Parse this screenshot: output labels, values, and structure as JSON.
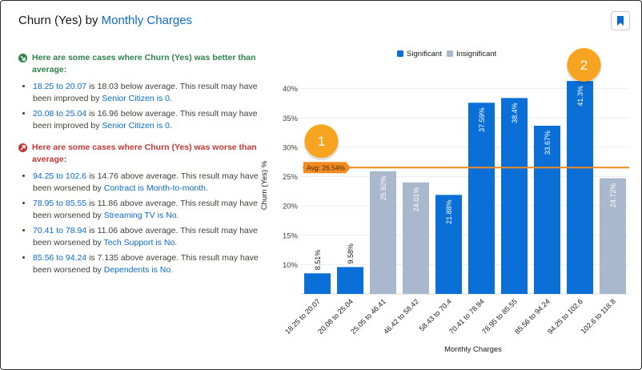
{
  "title": {
    "prefix": "Churn (Yes)",
    "by": "by",
    "field": "Monthly Charges"
  },
  "icons": {
    "bookmark": "bookmark-icon",
    "better": "arrow-down-right-icon",
    "worse": "arrow-up-right-icon"
  },
  "colors": {
    "significant": "#0a6fd6",
    "insignificant": "#a9b8cc",
    "average": "#f28a1d",
    "better": "#2e844a",
    "worse": "#c23934",
    "link": "#0b6bcb"
  },
  "insights": {
    "better_header": "Here are some cases where Churn (Yes) was better than average:",
    "better": [
      {
        "range": "18.25 to 20.07",
        "text": " is 18.03 below average. This result may have been improved by ",
        "factor": "Senior Citizen is 0."
      },
      {
        "range": "20.08 to 25.04",
        "text": " is 16.96 below average. This result may have been improved by ",
        "factor": "Senior Citizen is 0."
      }
    ],
    "worse_header": "Here are some cases where Churn (Yes) was worse than average:",
    "worse": [
      {
        "range": "94.25 to 102.6",
        "text": " is 14.76 above average. This result may have been worsened by ",
        "factor": "Contract is Month-to-month."
      },
      {
        "range": "78.95 to 85.55",
        "text": " is 11.86 above average. This result may have been worsened by ",
        "factor": "Streaming TV is No."
      },
      {
        "range": "70.41 to 78.94",
        "text": " is 11.06 above average. This result may have been worsened by ",
        "factor": "Tech Support is No."
      },
      {
        "range": "85.56 to 94.24",
        "text": " is 7.135 above average. This result may have been worsened by ",
        "factor": "Dependents is No."
      }
    ]
  },
  "chart_data": {
    "type": "bar",
    "xlabel": "Monthly Charges",
    "ylabel": "Churn (Yes) %",
    "ylim": [
      5,
      42
    ],
    "yticks": [
      10,
      15,
      20,
      25,
      30,
      35,
      40
    ],
    "ytick_labels": [
      "10%",
      "15%",
      "20%",
      "25%",
      "30%",
      "35%",
      "40%"
    ],
    "grid": true,
    "legend": {
      "position": "top",
      "entries": [
        "Significant",
        "Insignificant"
      ]
    },
    "categories": [
      "18.25 to 20.07",
      "20.08 to 25.04",
      "25.05 to 46.41",
      "46.42 to 58.42",
      "58.43 to 70.4",
      "70.41 to 78.94",
      "78.95 to 85.55",
      "85.56 to 94.24",
      "94.25 to 102.6",
      "102.6 to 118.8"
    ],
    "values": [
      8.51,
      9.58,
      25.92,
      24.01,
      21.88,
      37.59,
      38.4,
      33.67,
      41.3,
      24.72
    ],
    "value_labels": [
      "8.51%",
      "9.58%",
      "25.92%",
      "24.01%",
      "21.88%",
      "37.59%",
      "38.4%",
      "33.67%",
      "41.3%",
      "24.72%"
    ],
    "significant": [
      true,
      true,
      false,
      false,
      true,
      true,
      true,
      true,
      true,
      false
    ],
    "average": {
      "value": 26.54,
      "label": "Avg: 26.54%"
    },
    "markers": [
      {
        "label": "1",
        "category_index": 0
      },
      {
        "label": "2",
        "category_index": 8
      }
    ]
  }
}
